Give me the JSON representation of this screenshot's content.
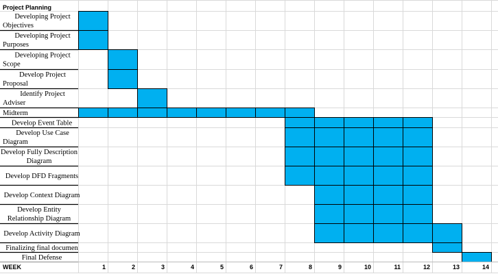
{
  "chart_data": {
    "type": "gantt",
    "title": "Project Planning",
    "xlabel": "WEEK",
    "weeks": [
      1,
      2,
      3,
      4,
      5,
      6,
      7,
      8,
      9,
      10,
      11,
      12,
      13,
      14
    ],
    "tasks": [
      {
        "lines": [
          "Developing Project",
          "Objectives"
        ],
        "start": 1,
        "end": 1
      },
      {
        "lines": [
          "Developing Project",
          "Purposes"
        ],
        "start": 1,
        "end": 1
      },
      {
        "lines": [
          "Developing Project",
          "Scope"
        ],
        "start": 2,
        "end": 2
      },
      {
        "lines": [
          "Develop Project",
          "Proposal"
        ],
        "start": 2,
        "end": 2
      },
      {
        "lines": [
          "Identify Project",
          "Adviser"
        ],
        "start": 3,
        "end": 3
      },
      {
        "lines": [
          "Midterm"
        ],
        "start": 1,
        "end": 8
      },
      {
        "lines": [
          "Develop Event Table"
        ],
        "start": 8,
        "end": 12
      },
      {
        "lines": [
          "Develop Use Case",
          "Diagram"
        ],
        "start": 8,
        "end": 12
      },
      {
        "lines": [
          "Develop Fully Description",
          "Diagram"
        ],
        "start": 8,
        "end": 12
      },
      {
        "lines": [
          "Develop DFD Fragments"
        ],
        "start": 8,
        "end": 12
      },
      {
        "lines": [
          "Develop Context Diagram"
        ],
        "start": 9,
        "end": 12
      },
      {
        "lines": [
          "Develop Entity",
          "Relationship Diagram"
        ],
        "start": 9,
        "end": 12
      },
      {
        "lines": [
          "Develop Activity Diagram"
        ],
        "start": 9,
        "end": 13
      },
      {
        "lines": [
          "Finalizing final documen"
        ],
        "start": 13,
        "end": 13
      },
      {
        "lines": [
          "Final Defense"
        ],
        "start": 14,
        "end": 14
      }
    ],
    "bar_color": "#00B0F0"
  }
}
